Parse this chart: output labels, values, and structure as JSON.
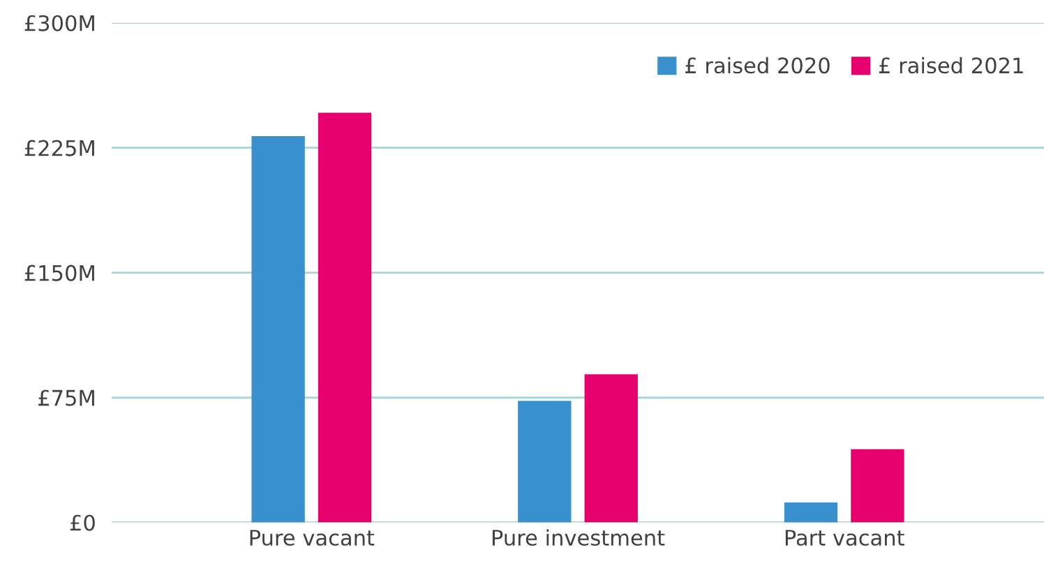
{
  "chart_data": {
    "type": "bar",
    "categories": [
      "Pure vacant",
      "Pure investment",
      "Part vacant"
    ],
    "series": [
      {
        "name": "£ raised 2020",
        "color": "#3a8fcd",
        "values": [
          232,
          73,
          12
        ]
      },
      {
        "name": "£ raised 2021",
        "color": "#e5006e",
        "values": [
          246,
          89,
          44
        ]
      }
    ],
    "ylim": [
      0,
      300
    ],
    "yticks": [
      {
        "value": 0,
        "label": "£0"
      },
      {
        "value": 75,
        "label": "£75M"
      },
      {
        "value": 150,
        "label": "£150M"
      },
      {
        "value": 225,
        "label": "£225M"
      },
      {
        "value": 300,
        "label": "£300M"
      }
    ],
    "grid": "y",
    "legend": "top right"
  }
}
